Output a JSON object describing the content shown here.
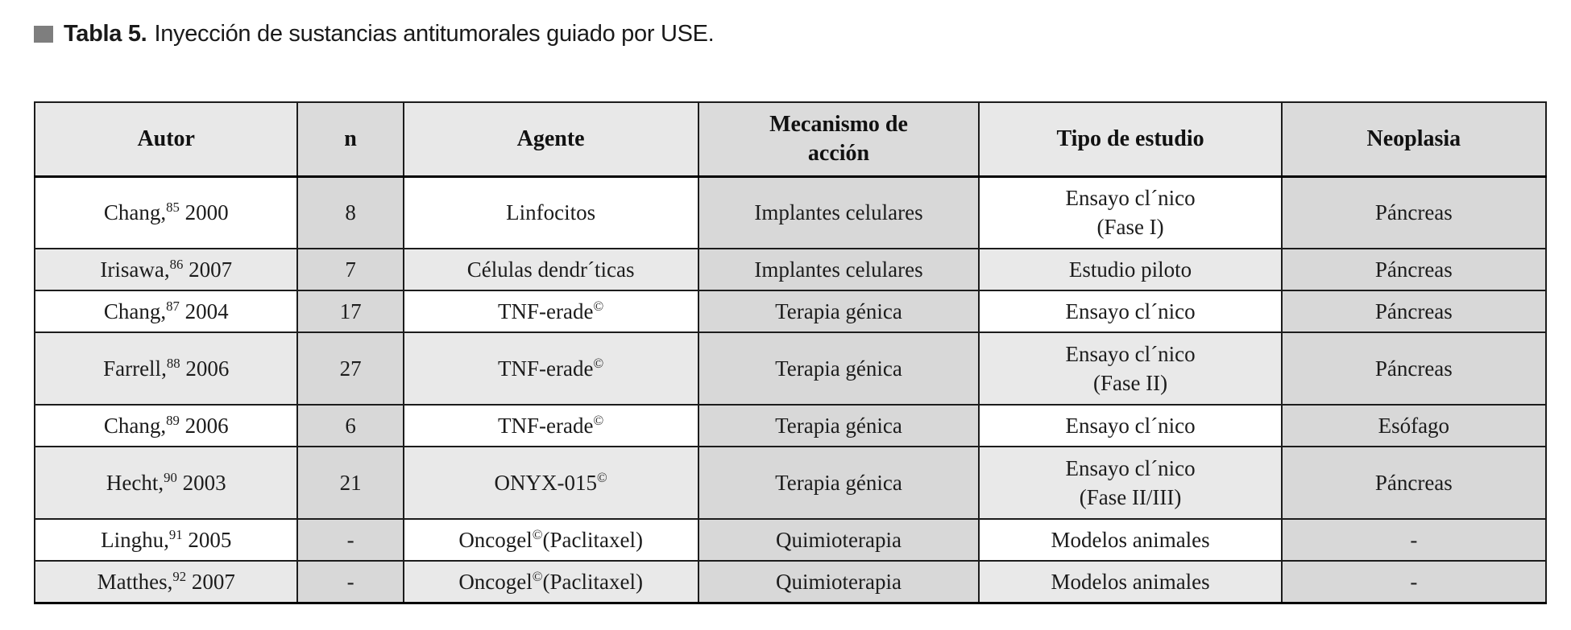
{
  "caption": {
    "label": "Tabla 5.",
    "text": "Inyección de sustancias antitumorales guiado por USE."
  },
  "colors": {
    "page_bg": "#ffffff",
    "cell_white": "#ffffff",
    "cell_light": "#e9e9e9",
    "cell_shaded": "#d8d8d8",
    "header_light": "#e8e8e8",
    "header_shaded": "#dbdbdb",
    "border": "#1c1c1c",
    "bullet": "#7e7e7e",
    "text": "#1c1c1c"
  },
  "table": {
    "headers": [
      "Autor",
      "n",
      "Agente",
      "Mecanismo de\nacción",
      "Tipo de estudio",
      "Neoplasia"
    ],
    "rows": [
      {
        "autor_pre": "Chang,",
        "autor_sup": "85",
        "autor_post": " 2000",
        "n": "8",
        "agente_pre": "Linfocitos",
        "agente_sup": "",
        "agente_post": "",
        "mecanismo": "Implantes celulares",
        "tipo": "Ensayo cl´nico\n(Fase I)",
        "neoplasia": "Páncreas"
      },
      {
        "autor_pre": "Irisawa,",
        "autor_sup": "86",
        "autor_post": " 2007",
        "n": "7",
        "agente_pre": "Células dendr´ticas",
        "agente_sup": "",
        "agente_post": "",
        "mecanismo": "Implantes celulares",
        "tipo": "Estudio piloto",
        "neoplasia": "Páncreas"
      },
      {
        "autor_pre": "Chang,",
        "autor_sup": "87",
        "autor_post": " 2004",
        "n": "17",
        "agente_pre": "TNF-erade",
        "agente_sup": "©",
        "agente_post": "",
        "mecanismo": "Terapia génica",
        "tipo": "Ensayo cl´nico",
        "neoplasia": "Páncreas"
      },
      {
        "autor_pre": "Farrell,",
        "autor_sup": "88",
        "autor_post": " 2006",
        "n": "27",
        "agente_pre": "TNF-erade",
        "agente_sup": "©",
        "agente_post": "",
        "mecanismo": "Terapia génica",
        "tipo": "Ensayo cl´nico\n(Fase II)",
        "neoplasia": "Páncreas"
      },
      {
        "autor_pre": "Chang,",
        "autor_sup": "89",
        "autor_post": " 2006",
        "n": "6",
        "agente_pre": "TNF-erade",
        "agente_sup": "©",
        "agente_post": "",
        "mecanismo": "Terapia génica",
        "tipo": "Ensayo cl´nico",
        "neoplasia": "Esófago"
      },
      {
        "autor_pre": "Hecht,",
        "autor_sup": "90",
        "autor_post": " 2003",
        "n": "21",
        "agente_pre": "ONYX-015",
        "agente_sup": "©",
        "agente_post": "",
        "mecanismo": "Terapia génica",
        "tipo": "Ensayo cl´nico\n(Fase II/III)",
        "neoplasia": "Páncreas"
      },
      {
        "autor_pre": "Linghu,",
        "autor_sup": "91",
        "autor_post": " 2005",
        "n": "-",
        "agente_pre": "Oncogel",
        "agente_sup": "©",
        "agente_post": "(Paclitaxel)",
        "mecanismo": "Quimioterapia",
        "tipo": "Modelos animales",
        "neoplasia": "-"
      },
      {
        "autor_pre": "Matthes,",
        "autor_sup": "92",
        "autor_post": " 2007",
        "n": "-",
        "agente_pre": "Oncogel",
        "agente_sup": "©",
        "agente_post": "(Paclitaxel)",
        "mecanismo": "Quimioterapia",
        "tipo": "Modelos animales",
        "neoplasia": "-"
      }
    ]
  }
}
